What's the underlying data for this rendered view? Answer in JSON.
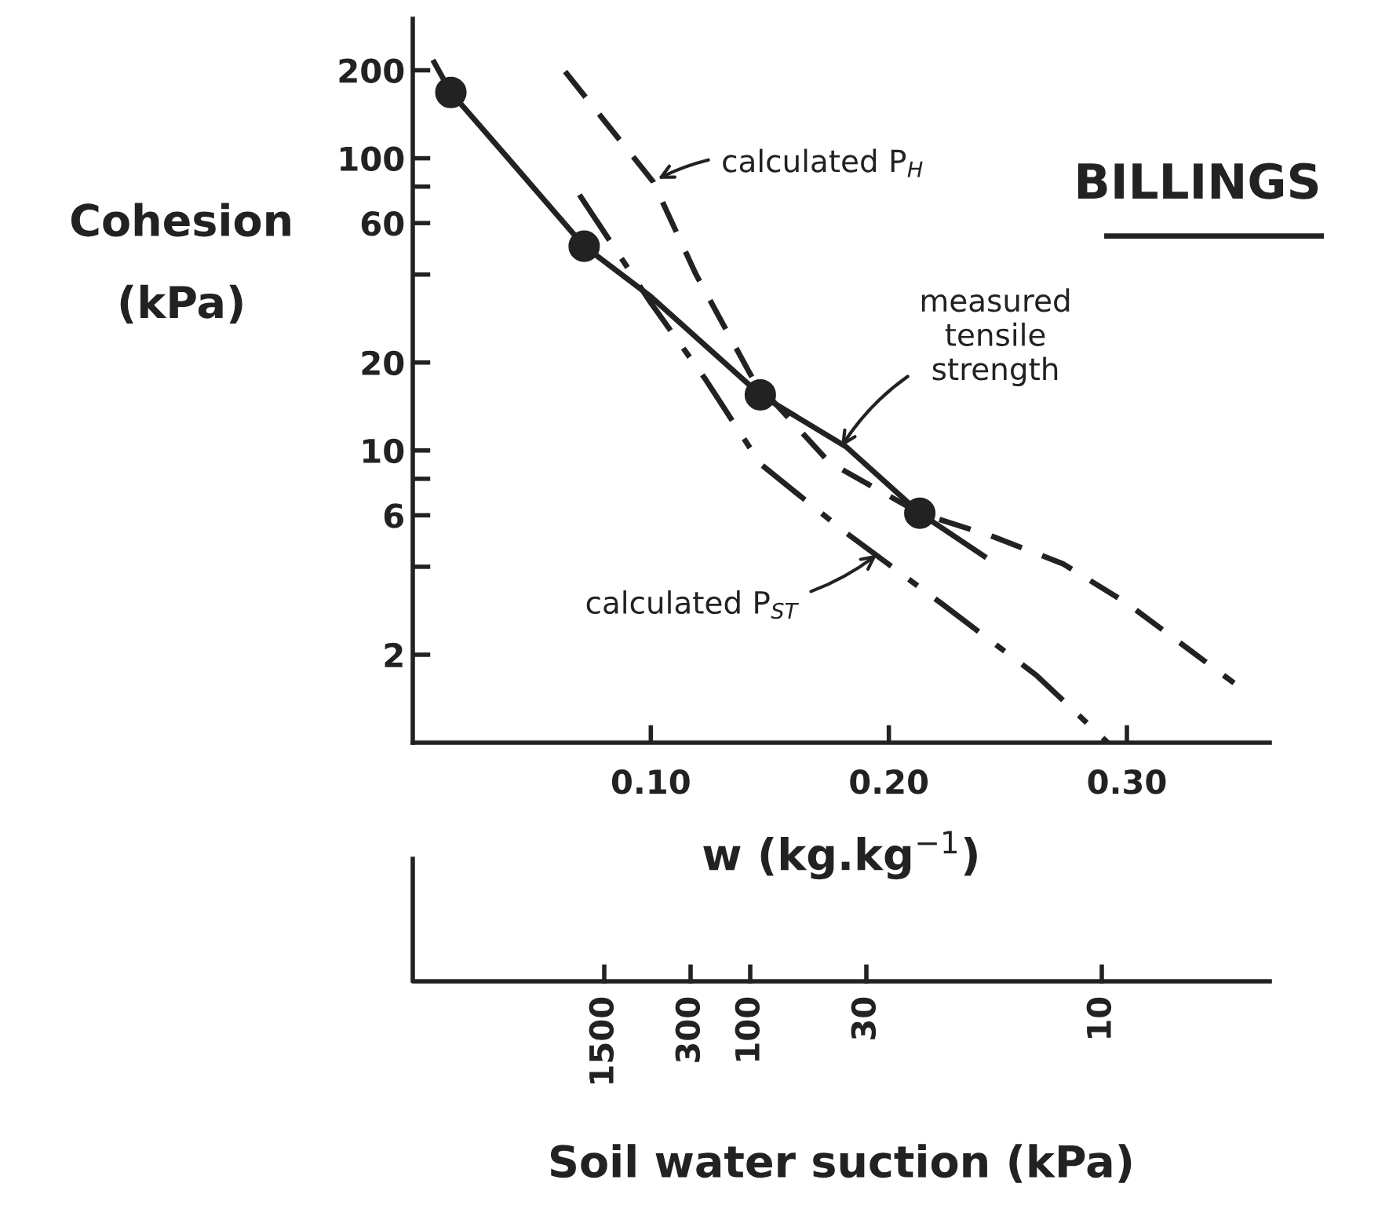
{
  "chart_data": {
    "type": "line",
    "title": "BILLINGS",
    "xlabel": "w (kg.kg$^{−1}$)",
    "ylabel": "Cohesion\n(kPa)",
    "x2label": "Soil water suction (kPa)",
    "series": [
      {
        "color": "#222222",
        "line_style": "solid",
        "marker": "none",
        "x": [
          0.009,
          0.016,
          0.041,
          0.072,
          0.1,
          0.146,
          0.182,
          0.213,
          0.24
        ],
        "values": [
          213,
          168,
          98,
          50,
          33.6,
          15.5,
          10.3,
          6.1,
          4.35
        ]
      },
      {
        "type": "scatter",
        "color": "#222222",
        "marker": "circle",
        "x": [
          0.016,
          0.072,
          0.146,
          0.213
        ],
        "values": [
          168,
          50,
          15.5,
          6.1
        ]
      },
      {
        "color": "#222222",
        "line_style": "dashed",
        "marker": "none",
        "x": [
          0.064,
          0.101,
          0.119,
          0.143,
          0.175,
          0.213,
          0.243,
          0.273,
          0.3,
          0.345
        ],
        "values": [
          198,
          83,
          40,
          17.5,
          9.1,
          6.1,
          5.1,
          4.1,
          3.0,
          1.6
        ]
      },
      {
        "color": "#222222",
        "line_style": "dashdot",
        "marker": "none",
        "x": [
          0.07,
          0.1,
          0.123,
          0.146,
          0.181,
          0.222,
          0.262,
          0.292
        ],
        "values": [
          75,
          32,
          17.5,
          9.0,
          5.3,
          3.0,
          1.7,
          1.0
        ]
      }
    ],
    "annotations": [
      {
        "text": "calculated P$_{H}$",
        "x": 0.103,
        "y": 85
      },
      {
        "text": "measured\ntensile\nstrength",
        "x": 0.18,
        "y": 10.3
      },
      {
        "text": "calculated P$_{ST}$",
        "x": 0.195,
        "y": 4.4
      },
      "1500",
      "300",
      "100",
      "30",
      "10"
    ],
    "log": "y",
    "xlim": [
      0,
      0.36
    ],
    "xticks": [
      {
        "value": 0.1,
        "label": "0.10"
      },
      {
        "value": 0.2,
        "label": "0.20"
      },
      {
        "value": 0.3,
        "label": "0.30"
      }
    ],
    "ylim": [
      1,
      300
    ],
    "yticks": [
      2,
      {
        "value": 4,
        "label": null
      },
      6,
      {
        "value": 8,
        "label": null
      },
      10,
      20,
      {
        "value": 40,
        "label": null
      },
      60,
      {
        "value": 80,
        "label": null
      },
      100,
      200
    ],
    "grid": false
  }
}
